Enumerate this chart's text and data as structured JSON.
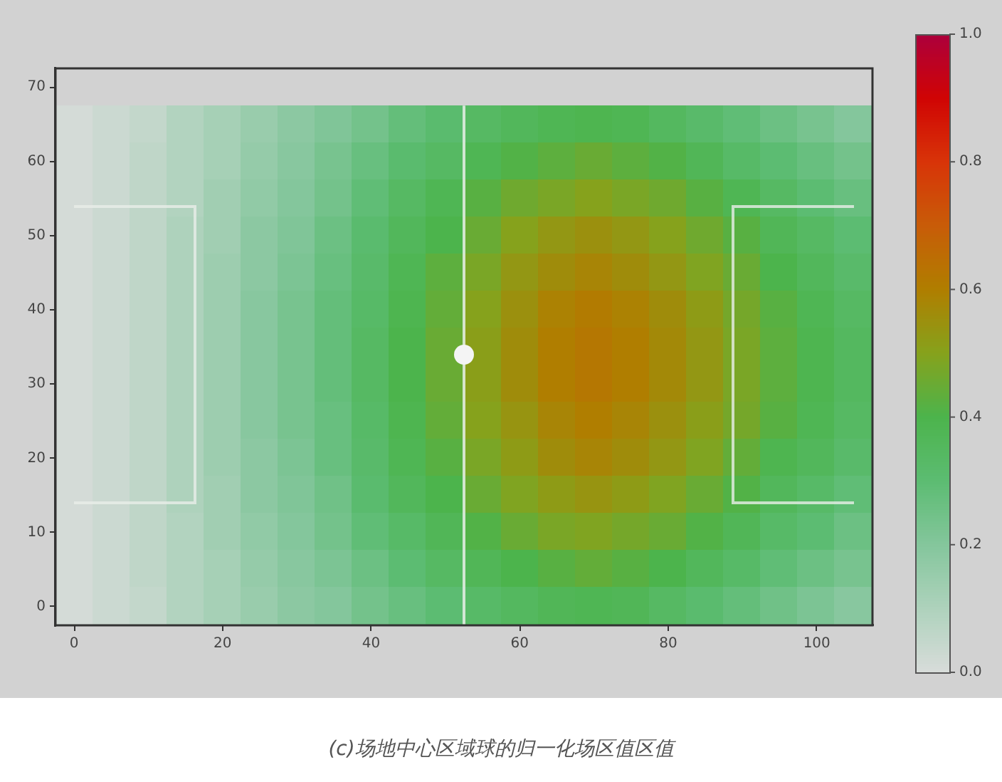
{
  "chart_data": {
    "type": "heatmap",
    "categories": [
      "0",
      null,
      null,
      null,
      "20",
      null,
      null,
      null,
      "40",
      null,
      null,
      null,
      "60",
      null,
      null,
      null,
      "80",
      null,
      null,
      null,
      "100",
      null
    ],
    "y_categories": [
      "70",
      null,
      "60",
      null,
      "50",
      null,
      "40",
      null,
      "30",
      null,
      "20",
      null,
      "10",
      null,
      "0"
    ],
    "cells": [
      [
        null,
        null,
        null,
        null,
        null,
        null,
        null,
        null,
        null,
        null,
        null,
        null,
        null,
        null,
        null,
        null,
        null,
        null,
        null,
        null,
        null,
        null
      ],
      [
        0.01,
        0.03,
        0.05,
        0.09,
        0.12,
        0.15,
        0.18,
        0.21,
        0.24,
        0.28,
        0.31,
        0.34,
        0.36,
        0.38,
        0.39,
        0.38,
        0.35,
        0.32,
        0.29,
        0.26,
        0.23,
        0.2
      ],
      [
        0.01,
        0.03,
        0.06,
        0.09,
        0.12,
        0.16,
        0.19,
        0.23,
        0.27,
        0.31,
        0.34,
        0.38,
        0.41,
        0.43,
        0.45,
        0.43,
        0.41,
        0.37,
        0.33,
        0.3,
        0.27,
        0.24
      ],
      [
        0.01,
        0.03,
        0.06,
        0.09,
        0.13,
        0.17,
        0.2,
        0.24,
        0.29,
        0.34,
        0.38,
        0.42,
        0.46,
        0.48,
        0.5,
        0.48,
        0.46,
        0.42,
        0.38,
        0.34,
        0.3,
        0.27
      ],
      [
        0.01,
        0.03,
        0.06,
        0.1,
        0.13,
        0.18,
        0.21,
        0.26,
        0.31,
        0.36,
        0.4,
        0.45,
        0.5,
        0.53,
        0.55,
        0.53,
        0.5,
        0.46,
        0.42,
        0.37,
        0.34,
        0.3
      ],
      [
        0.01,
        0.03,
        0.06,
        0.1,
        0.14,
        0.18,
        0.22,
        0.27,
        0.32,
        0.38,
        0.43,
        0.48,
        0.53,
        0.56,
        0.58,
        0.56,
        0.53,
        0.49,
        0.45,
        0.4,
        0.36,
        0.32
      ],
      [
        0.01,
        0.03,
        0.06,
        0.1,
        0.14,
        0.19,
        0.23,
        0.28,
        0.33,
        0.39,
        0.44,
        0.5,
        0.55,
        0.59,
        0.61,
        0.59,
        0.56,
        0.52,
        0.47,
        0.42,
        0.38,
        0.34
      ],
      [
        0.01,
        0.03,
        0.06,
        0.1,
        0.14,
        0.19,
        0.23,
        0.28,
        0.34,
        0.4,
        0.45,
        0.51,
        0.56,
        0.6,
        0.62,
        0.6,
        0.57,
        0.53,
        0.48,
        0.43,
        0.39,
        0.35
      ],
      [
        0.01,
        0.03,
        0.06,
        0.1,
        0.14,
        0.19,
        0.23,
        0.28,
        0.34,
        0.4,
        0.45,
        0.51,
        0.56,
        0.6,
        0.62,
        0.6,
        0.57,
        0.53,
        0.48,
        0.43,
        0.39,
        0.35
      ],
      [
        0.01,
        0.03,
        0.06,
        0.1,
        0.14,
        0.19,
        0.23,
        0.27,
        0.33,
        0.39,
        0.44,
        0.5,
        0.54,
        0.58,
        0.6,
        0.58,
        0.55,
        0.51,
        0.47,
        0.42,
        0.38,
        0.34
      ],
      [
        0.01,
        0.03,
        0.06,
        0.1,
        0.14,
        0.18,
        0.22,
        0.27,
        0.32,
        0.38,
        0.42,
        0.48,
        0.52,
        0.56,
        0.58,
        0.56,
        0.53,
        0.49,
        0.44,
        0.39,
        0.36,
        0.32
      ],
      [
        0.01,
        0.03,
        0.06,
        0.1,
        0.13,
        0.18,
        0.21,
        0.25,
        0.31,
        0.36,
        0.4,
        0.45,
        0.49,
        0.52,
        0.54,
        0.52,
        0.49,
        0.45,
        0.41,
        0.36,
        0.33,
        0.29
      ],
      [
        0.01,
        0.03,
        0.06,
        0.09,
        0.13,
        0.17,
        0.2,
        0.24,
        0.29,
        0.33,
        0.37,
        0.41,
        0.45,
        0.48,
        0.49,
        0.47,
        0.45,
        0.41,
        0.37,
        0.33,
        0.3,
        0.26
      ],
      [
        0.01,
        0.03,
        0.06,
        0.09,
        0.12,
        0.16,
        0.19,
        0.22,
        0.26,
        0.3,
        0.34,
        0.37,
        0.4,
        0.42,
        0.44,
        0.42,
        0.4,
        0.36,
        0.33,
        0.29,
        0.26,
        0.23
      ],
      [
        0.01,
        0.03,
        0.05,
        0.09,
        0.12,
        0.15,
        0.18,
        0.2,
        0.24,
        0.27,
        0.3,
        0.33,
        0.35,
        0.37,
        0.38,
        0.37,
        0.34,
        0.31,
        0.28,
        0.25,
        0.22,
        0.19
      ]
    ],
    "clim": [
      0,
      1
    ],
    "cticks": [
      {
        "value": 0,
        "label": "0.0"
      },
      0.2,
      0.4,
      0.6,
      0.8,
      {
        "value": 1,
        "label": "1.0"
      }
    ],
    "annotations": [
      "(c)场地中心区域球的归一化场区值区值"
    ]
  }
}
